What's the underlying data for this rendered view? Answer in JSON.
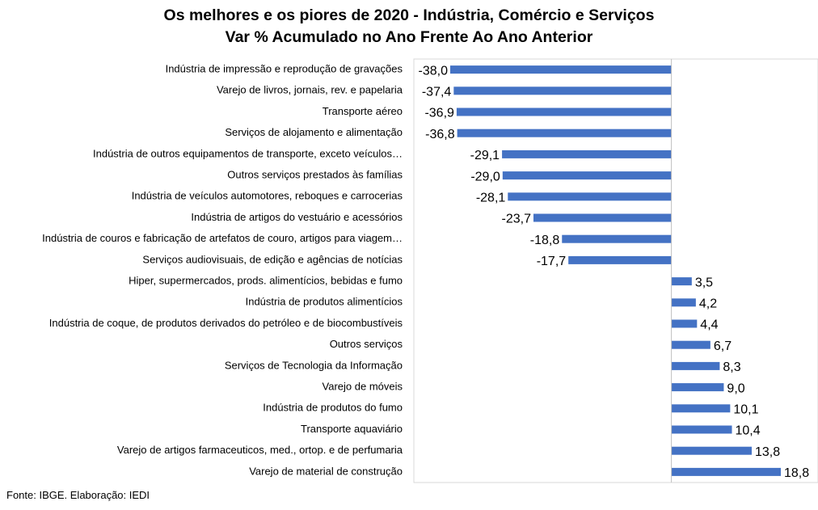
{
  "chart_data": {
    "type": "bar",
    "orientation": "horizontal",
    "title": "Os melhores e os piores de 2020 - Indústria, Comércio e Serviços",
    "subtitle": "Var % Acumulado no Ano Frente Ao Ano Anterior",
    "categories": [
      "Indústria de impressão e reprodução de gravações",
      "Varejo de livros, jornais, rev. e papelaria",
      "Transporte aéreo",
      "Serviços de alojamento e alimentação",
      "Indústria de outros equipamentos de transporte, exceto veículos…",
      "Outros serviços prestados às famílias",
      "Indústria de veículos automotores, reboques e carrocerias",
      "Indústria de artigos do vestuário e acessórios",
      "Indústria de couros e fabricação de artefatos de couro, artigos para viagem…",
      "Serviços audiovisuais, de edição e agências de notícias",
      "Hiper, supermercados, prods. alimentícios, bebidas e fumo",
      "Indústria de produtos alimentícios",
      "Indústria de coque, de produtos derivados do petróleo e de biocombustíveis",
      "Outros serviços",
      "Serviços de Tecnologia da Informação",
      "Varejo de móveis",
      "Indústria de produtos do fumo",
      "Transporte aquaviário",
      "Varejo de artigos farmaceuticos, med., ortop. e de perfumaria",
      "Varejo de material de construção"
    ],
    "values": [
      -38.0,
      -37.4,
      -36.9,
      -36.8,
      -29.1,
      -29.0,
      -28.1,
      -23.7,
      -18.8,
      -17.7,
      3.5,
      4.2,
      4.4,
      6.7,
      8.3,
      9.0,
      10.1,
      10.4,
      13.8,
      18.8
    ],
    "value_labels": [
      "-38,0",
      "-37,4",
      "-36,9",
      "-36,8",
      "-29,1",
      "-29,0",
      "-28,1",
      "-23,7",
      "-18,8",
      "-17,7",
      "3,5",
      "4,2",
      "4,4",
      "6,7",
      "8,3",
      "9,0",
      "10,1",
      "10,4",
      "13,8",
      "18,8"
    ],
    "xlim": [
      -38.0,
      18.8
    ],
    "bar_color": "#4472C4",
    "grid": false,
    "legend": "none"
  },
  "footer": {
    "source": "Fonte: IBGE. Elaboração: IEDI"
  }
}
